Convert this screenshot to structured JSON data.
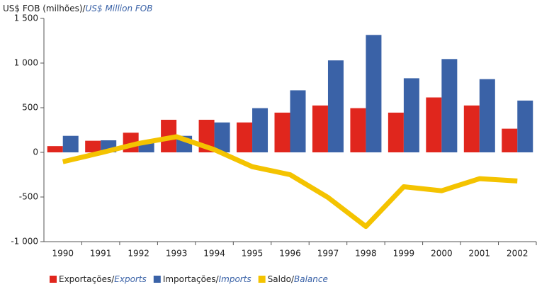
{
  "chart_data": {
    "type": "bar_line",
    "title": "US$ FOB (milhões)/US$ Million FOB",
    "categories": [
      "1990",
      "1991",
      "1992",
      "1993",
      "1994",
      "1995",
      "1996",
      "1997",
      "1998",
      "1999",
      "2000",
      "2001",
      "2002"
    ],
    "series": [
      {
        "name": "Exportações/Exports",
        "color": "#e0261d",
        "type": "bar",
        "values": [
          70,
          130,
          220,
          365,
          365,
          335,
          445,
          525,
          495,
          445,
          615,
          525,
          265
        ]
      },
      {
        "name": "Importações/Imports",
        "color": "#3a62a7",
        "type": "bar",
        "values": [
          185,
          135,
          120,
          185,
          335,
          495,
          695,
          1030,
          1315,
          830,
          1045,
          820,
          580
        ]
      },
      {
        "name": "Saldo/Balance",
        "color": "#f4c300",
        "type": "line",
        "values": [
          -105,
          -5,
          100,
          175,
          30,
          -160,
          -250,
          -505,
          -830,
          -385,
          -430,
          -295,
          -320
        ]
      }
    ],
    "ylim": [
      -1000,
      1500
    ],
    "yticks": [
      {
        "value": 1500,
        "label": "1 500"
      },
      {
        "value": 1000,
        "label": "1 000"
      },
      500,
      0,
      {
        "value": -500,
        "label": "-500"
      },
      {
        "value": -1000,
        "label": "-1 000"
      }
    ],
    "grid": false,
    "legend": "bottom"
  }
}
